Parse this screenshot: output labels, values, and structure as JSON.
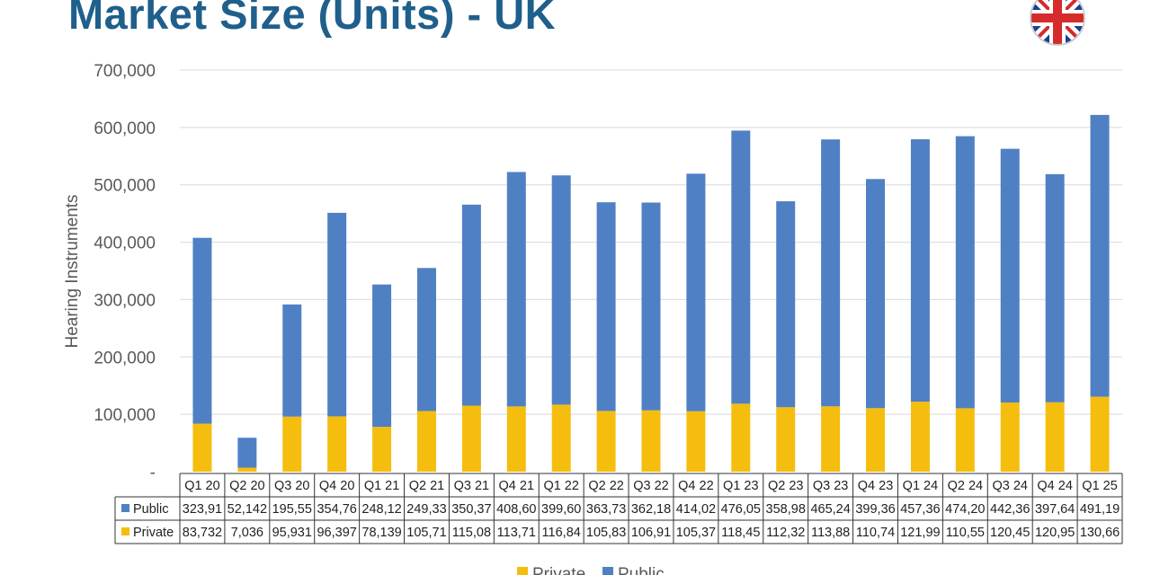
{
  "page": {
    "title": "Market Size (Units) - UK"
  },
  "colors": {
    "title": "#1f5f8b",
    "public": "#5080c4",
    "private": "#f5be0e",
    "grid": "#d9d9d9"
  },
  "chart_data": {
    "type": "bar",
    "stacked": true,
    "title": "",
    "xlabel": "",
    "ylabel": "Hearing Instruments",
    "ylim": [
      0,
      700000
    ],
    "yticks": [
      "-",
      "100,000",
      "200,000",
      "300,000",
      "400,000",
      "500,000",
      "600,000",
      "700,000"
    ],
    "grid": true,
    "legend_position": "bottom",
    "legend": [
      "Private",
      "Public"
    ],
    "categories": [
      "Q1 20",
      "Q2 20",
      "Q3 20",
      "Q4 20",
      "Q1 21",
      "Q2 21",
      "Q3 21",
      "Q4 21",
      "Q1 22",
      "Q2 22",
      "Q3 22",
      "Q4 22",
      "Q1 23",
      "Q2 23",
      "Q3 23",
      "Q4 23",
      "Q1 24",
      "Q2 24",
      "Q3 24",
      "Q4 24",
      "Q1 25"
    ],
    "series": [
      {
        "name": "Public",
        "color": "#5080c4",
        "values": [
          323910,
          52142,
          195550,
          354760,
          248120,
          249330,
          350370,
          408600,
          399600,
          363730,
          362180,
          414020,
          476050,
          358980,
          465240,
          399360,
          457360,
          474200,
          442360,
          397640,
          491190
        ],
        "table_labels": [
          "323,91",
          "52,142",
          "195,55",
          "354,76",
          "248,12",
          "249,33",
          "350,37",
          "408,60",
          "399,60",
          "363,73",
          "362,18",
          "414,02",
          "476,05",
          "358,98",
          "465,24",
          "399,36",
          "457,36",
          "474,20",
          "442,36",
          "397,64",
          "491,19"
        ]
      },
      {
        "name": "Private",
        "color": "#f5be0e",
        "values": [
          83732,
          7036,
          95931,
          96397,
          78139,
          105710,
          115080,
          113710,
          116840,
          105830,
          106910,
          105370,
          118450,
          112320,
          113880,
          110740,
          121990,
          110550,
          120450,
          120950,
          130660
        ],
        "table_labels": [
          "83,732",
          "7,036",
          "95,931",
          "96,397",
          "78,139",
          "105,71",
          "115,08",
          "113,71",
          "116,84",
          "105,83",
          "106,91",
          "105,37",
          "118,45",
          "112,32",
          "113,88",
          "110,74",
          "121,99",
          "110,55",
          "120,45",
          "120,95",
          "130,66"
        ]
      }
    ]
  }
}
